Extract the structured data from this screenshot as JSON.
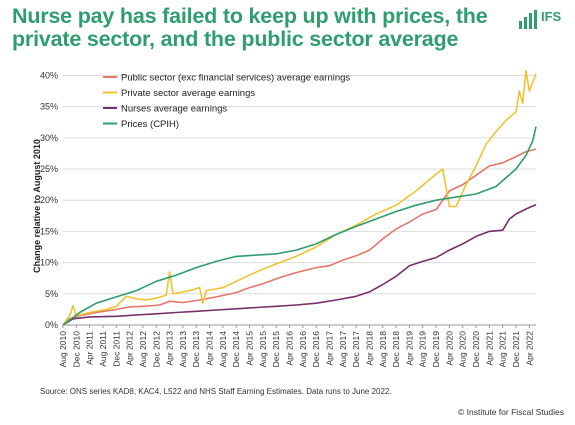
{
  "title": "Nurse pay has failed to keep up with prices, the private sector, and the public sector average",
  "logo_text": "IFS",
  "source": "Source: ONS series KAD8, KAC4, L522 and NHS Staff Earning Estimates. Data runs to June 2022.",
  "copyright": "© Institute for Fiscal Studies",
  "chart_data": {
    "type": "line",
    "ylabel": "Change relative to August 2010",
    "xlabel": "",
    "ylim": [
      0,
      42
    ],
    "xlim": [
      "2010-08",
      "2022-06"
    ],
    "y_ticks": [
      "0%",
      "5%",
      "10%",
      "15%",
      "20%",
      "25%",
      "30%",
      "35%",
      "40%"
    ],
    "y_tick_values": [
      0,
      5,
      10,
      15,
      20,
      25,
      30,
      35,
      40
    ],
    "x_ticks": [
      "Aug 2010",
      "Dec 2010",
      "Apr 2011",
      "Aug 2011",
      "Dec 2011",
      "Apr 2012",
      "Aug 2012",
      "Dec 2012",
      "Apr 2013",
      "Aug 2013",
      "Dec 2013",
      "Apr 2014",
      "Aug 2014",
      "Dec 2014",
      "Apr 2015",
      "Aug 2015",
      "Dec 2015",
      "Apr 2016",
      "Aug 2016",
      "Dec 2016",
      "Apr 2017",
      "Aug 2017",
      "Dec 2017",
      "Apr 2018",
      "Aug 2018",
      "Dec 2018",
      "Apr 2019",
      "Aug 2019",
      "Dec 2019",
      "Apr 2020",
      "Aug 2020",
      "Dec 2020",
      "Apr 2021",
      "Aug 2021",
      "Dec 2021",
      "Apr 2022"
    ],
    "grid": "horizontal",
    "legend_position": "top-left",
    "series": [
      {
        "name": "Public sector (exc financial services) average earnings",
        "color": "#e4766a",
        "points": [
          [
            "2010-08",
            0
          ],
          [
            "2010-10",
            1.0
          ],
          [
            "2011-01",
            1.5
          ],
          [
            "2011-06",
            2.0
          ],
          [
            "2011-12",
            2.5
          ],
          [
            "2012-04",
            2.9
          ],
          [
            "2012-08",
            3.0
          ],
          [
            "2013-01",
            3.2
          ],
          [
            "2013-04",
            3.8
          ],
          [
            "2013-08",
            3.6
          ],
          [
            "2014-01",
            4.0
          ],
          [
            "2014-06",
            4.5
          ],
          [
            "2014-12",
            5.2
          ],
          [
            "2015-04",
            6.0
          ],
          [
            "2015-08",
            6.6
          ],
          [
            "2016-01",
            7.6
          ],
          [
            "2016-06",
            8.4
          ],
          [
            "2016-12",
            9.2
          ],
          [
            "2017-04",
            9.5
          ],
          [
            "2017-08",
            10.4
          ],
          [
            "2017-12",
            11.1
          ],
          [
            "2018-04",
            12.0
          ],
          [
            "2018-08",
            13.8
          ],
          [
            "2018-12",
            15.4
          ],
          [
            "2019-04",
            16.5
          ],
          [
            "2019-08",
            17.8
          ],
          [
            "2019-12",
            18.5
          ],
          [
            "2020-04",
            21.5
          ],
          [
            "2020-08",
            22.5
          ],
          [
            "2020-12",
            24.0
          ],
          [
            "2021-04",
            25.5
          ],
          [
            "2021-08",
            26.0
          ],
          [
            "2021-12",
            27.0
          ],
          [
            "2022-03",
            27.8
          ],
          [
            "2022-06",
            28.2
          ]
        ]
      },
      {
        "name": "Private sector average earnings",
        "color": "#f0c431",
        "points": [
          [
            "2010-08",
            0
          ],
          [
            "2010-10",
            1.5
          ],
          [
            "2010-11",
            3.1
          ],
          [
            "2010-12",
            1.5
          ],
          [
            "2011-04",
            2.0
          ],
          [
            "2011-09",
            2.5
          ],
          [
            "2011-12",
            3.0
          ],
          [
            "2012-03",
            4.6
          ],
          [
            "2012-06",
            4.2
          ],
          [
            "2012-09",
            4.0
          ],
          [
            "2012-12",
            4.3
          ],
          [
            "2013-03",
            4.8
          ],
          [
            "2013-04",
            8.5
          ],
          [
            "2013-05",
            5.0
          ],
          [
            "2013-10",
            5.5
          ],
          [
            "2014-01",
            6.0
          ],
          [
            "2014-02",
            3.5
          ],
          [
            "2014-03",
            5.5
          ],
          [
            "2014-08",
            6.0
          ],
          [
            "2014-12",
            7.0
          ],
          [
            "2015-06",
            8.5
          ],
          [
            "2015-12",
            9.8
          ],
          [
            "2016-06",
            11.0
          ],
          [
            "2016-12",
            12.5
          ],
          [
            "2017-06",
            14.5
          ],
          [
            "2017-12",
            16.0
          ],
          [
            "2018-06",
            17.8
          ],
          [
            "2018-12",
            19.2
          ],
          [
            "2019-06",
            21.5
          ],
          [
            "2019-12",
            24.2
          ],
          [
            "2020-02",
            25.0
          ],
          [
            "2020-04",
            19.0
          ],
          [
            "2020-06",
            19.0
          ],
          [
            "2020-09",
            22.5
          ],
          [
            "2020-12",
            25.5
          ],
          [
            "2021-03",
            29.0
          ],
          [
            "2021-06",
            31.0
          ],
          [
            "2021-09",
            32.8
          ],
          [
            "2021-12",
            34.2
          ],
          [
            "2022-01",
            37.5
          ],
          [
            "2022-02",
            35.5
          ],
          [
            "2022-03",
            40.8
          ],
          [
            "2022-04",
            37.5
          ],
          [
            "2022-06",
            40.3
          ]
        ]
      },
      {
        "name": "Nurses average earnings",
        "color": "#7a2f6b",
        "points": [
          [
            "2010-08",
            0
          ],
          [
            "2010-11",
            1.0
          ],
          [
            "2011-04",
            1.3
          ],
          [
            "2011-12",
            1.4
          ],
          [
            "2012-06",
            1.6
          ],
          [
            "2012-12",
            1.8
          ],
          [
            "2013-06",
            2.0
          ],
          [
            "2013-12",
            2.2
          ],
          [
            "2014-06",
            2.4
          ],
          [
            "2014-12",
            2.6
          ],
          [
            "2015-06",
            2.8
          ],
          [
            "2015-12",
            3.0
          ],
          [
            "2016-06",
            3.2
          ],
          [
            "2016-12",
            3.5
          ],
          [
            "2017-06",
            4.0
          ],
          [
            "2017-12",
            4.6
          ],
          [
            "2018-04",
            5.3
          ],
          [
            "2018-08",
            6.5
          ],
          [
            "2018-12",
            7.8
          ],
          [
            "2019-04",
            9.5
          ],
          [
            "2019-08",
            10.2
          ],
          [
            "2019-12",
            10.8
          ],
          [
            "2020-04",
            12.0
          ],
          [
            "2020-08",
            13.0
          ],
          [
            "2020-12",
            14.2
          ],
          [
            "2021-04",
            15.0
          ],
          [
            "2021-08",
            15.2
          ],
          [
            "2021-10",
            17.0
          ],
          [
            "2021-12",
            17.8
          ],
          [
            "2022-03",
            18.6
          ],
          [
            "2022-06",
            19.3
          ]
        ]
      },
      {
        "name": "Prices (CPIH)",
        "color": "#2e9e6e",
        "points": [
          [
            "2010-08",
            0
          ],
          [
            "2011-01",
            2.0
          ],
          [
            "2011-06",
            3.5
          ],
          [
            "2011-12",
            4.5
          ],
          [
            "2012-06",
            5.5
          ],
          [
            "2012-12",
            7.0
          ],
          [
            "2013-06",
            8.0
          ],
          [
            "2013-12",
            9.2
          ],
          [
            "2014-06",
            10.2
          ],
          [
            "2014-12",
            11.0
          ],
          [
            "2015-06",
            11.2
          ],
          [
            "2015-12",
            11.4
          ],
          [
            "2016-06",
            12.0
          ],
          [
            "2016-12",
            13.0
          ],
          [
            "2017-06",
            14.5
          ],
          [
            "2017-12",
            15.8
          ],
          [
            "2018-06",
            17.0
          ],
          [
            "2018-12",
            18.2
          ],
          [
            "2019-06",
            19.2
          ],
          [
            "2019-12",
            20.0
          ],
          [
            "2020-06",
            20.5
          ],
          [
            "2020-12",
            21.0
          ],
          [
            "2021-06",
            22.2
          ],
          [
            "2021-12",
            25.0
          ],
          [
            "2022-03",
            27.2
          ],
          [
            "2022-05",
            29.5
          ],
          [
            "2022-06",
            31.8
          ]
        ]
      }
    ]
  }
}
